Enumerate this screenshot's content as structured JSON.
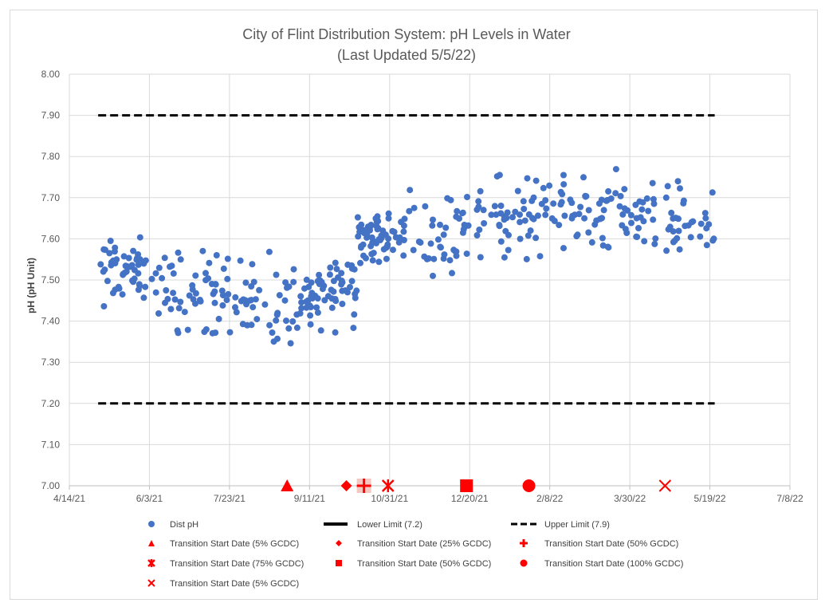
{
  "chart_data": {
    "type": "scatter",
    "title": "City of Flint Distribution System: pH Levels in Water",
    "subtitle": "(Last Updated 5/5/22)",
    "xlabel": "",
    "ylabel": "pH (pH Unit)",
    "x_ticks": [
      "4/14/21",
      "6/3/21",
      "7/23/21",
      "9/11/21",
      "10/31/21",
      "12/20/21",
      "2/8/22",
      "3/30/22",
      "5/19/22",
      "7/8/22"
    ],
    "x_tick_days": [
      0,
      50,
      100,
      150,
      200,
      250,
      300,
      350,
      400,
      450
    ],
    "xlim_days": [
      0,
      450
    ],
    "ylim": [
      7.0,
      8.0
    ],
    "y_ticks": [
      "7.00",
      "7.10",
      "7.20",
      "7.30",
      "7.40",
      "7.50",
      "7.60",
      "7.70",
      "7.80",
      "7.90",
      "8.00"
    ],
    "grid": true,
    "lower_limit": {
      "name": "Lower Limit (7.2)",
      "value": 7.2,
      "start_day": 18,
      "end_day": 403
    },
    "upper_limit": {
      "name": "Upper Limit (7.9)",
      "value": 7.9,
      "start_day": 18,
      "end_day": 403
    },
    "ph_series": {
      "name": "Dist pH",
      "color": "#4472c4",
      "segments": [
        {
          "start_day": 18,
          "end_day": 55,
          "center": 7.52,
          "spread": 0.07
        },
        {
          "start_day": 55,
          "end_day": 100,
          "center": 7.47,
          "spread": 0.09
        },
        {
          "start_day": 100,
          "end_day": 150,
          "center": 7.44,
          "spread": 0.1
        },
        {
          "start_day": 150,
          "end_day": 180,
          "center": 7.48,
          "spread": 0.08
        },
        {
          "start_day": 180,
          "end_day": 200,
          "center": 7.6,
          "spread": 0.06
        },
        {
          "start_day": 200,
          "end_day": 250,
          "center": 7.62,
          "spread": 0.08
        },
        {
          "start_day": 250,
          "end_day": 300,
          "center": 7.66,
          "spread": 0.09
        },
        {
          "start_day": 300,
          "end_day": 350,
          "center": 7.67,
          "spread": 0.08
        },
        {
          "start_day": 350,
          "end_day": 403,
          "center": 7.64,
          "spread": 0.08
        }
      ],
      "points_per_segment": 55
    },
    "transition_markers": [
      {
        "label": "Transition Start Date (5% GCDC)",
        "shape": "triangle",
        "day": 136,
        "value": 7.0
      },
      {
        "label": "Transition Start Date (25% GCDC)",
        "shape": "diamond",
        "day": 173,
        "value": 7.0
      },
      {
        "label": "Transition Start Date (50% GCDC)",
        "shape": "plus",
        "day": 184,
        "value": 7.0
      },
      {
        "label": "Transition Start Date (75% GCDC)",
        "shape": "star",
        "day": 199,
        "value": 7.0
      },
      {
        "label": "Transition Start Date (50% GCDC)",
        "shape": "square",
        "day": 248,
        "value": 7.0
      },
      {
        "label": "Transition Start Date (100% GCDC)",
        "shape": "circle",
        "day": 287,
        "value": 7.0
      },
      {
        "label": "Transition Start Date (5% GCDC)",
        "shape": "x",
        "day": 372,
        "value": 7.0
      }
    ],
    "marker_color": "#ff0000",
    "limit_line_color": "#000000",
    "legend": {
      "dist_ph": "Dist pH",
      "lower_limit": "Lower Limit (7.2)",
      "upper_limit": "Upper Limit (7.9)",
      "t1": "Transition Start Date (5% GCDC)",
      "t2": "Transition Start Date (25% GCDC)",
      "t3": "Transition Start Date (50% GCDC)",
      "t4": "Transition Start Date (75% GCDC)",
      "t5": "Transition Start Date (50% GCDC)",
      "t6": "Transition Start Date (100% GCDC)",
      "t7": "Transition Start Date (5% GCDC)"
    }
  }
}
